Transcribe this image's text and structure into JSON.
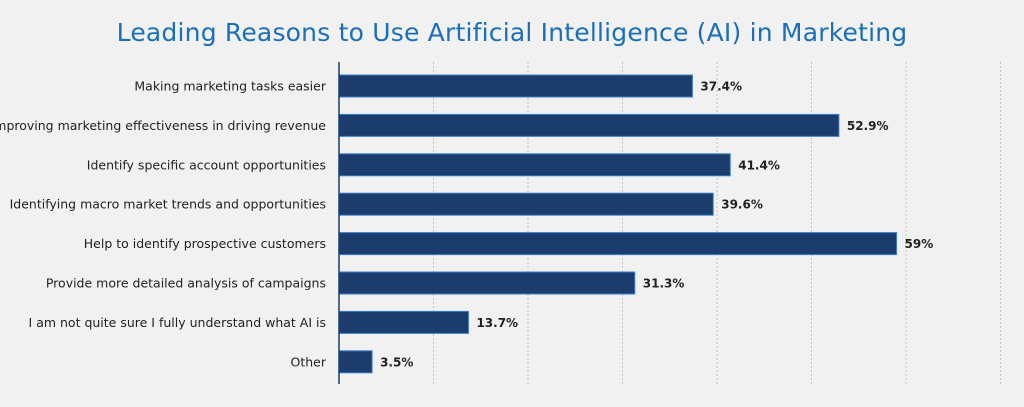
{
  "chart_data": {
    "type": "bar",
    "orientation": "horizontal",
    "title": "Leading Reasons to Use Artificial Intelligence (AI) in Marketing",
    "categories": [
      "Making marketing tasks easier",
      "Improving marketing effectiveness in driving revenue",
      "Identify specific account opportunities",
      "Identifying macro market trends and opportunities",
      "Help to identify prospective customers",
      "Provide more detailed analysis of campaigns",
      "I am not quite sure I fully understand what AI is",
      "Other"
    ],
    "values": [
      37.4,
      52.9,
      41.4,
      39.6,
      59,
      31.3,
      13.7,
      3.5
    ],
    "value_labels": [
      "37.4%",
      "52.9%",
      "41.4%",
      "39.6%",
      "59%",
      "31.3%",
      "13.7%",
      "3.5%"
    ],
    "xlim": [
      0,
      70
    ],
    "grid": true,
    "bar_color": "#1b3d6e",
    "bar_edge_color": "#3a7fd0",
    "title_color": "#1a6fb8"
  }
}
